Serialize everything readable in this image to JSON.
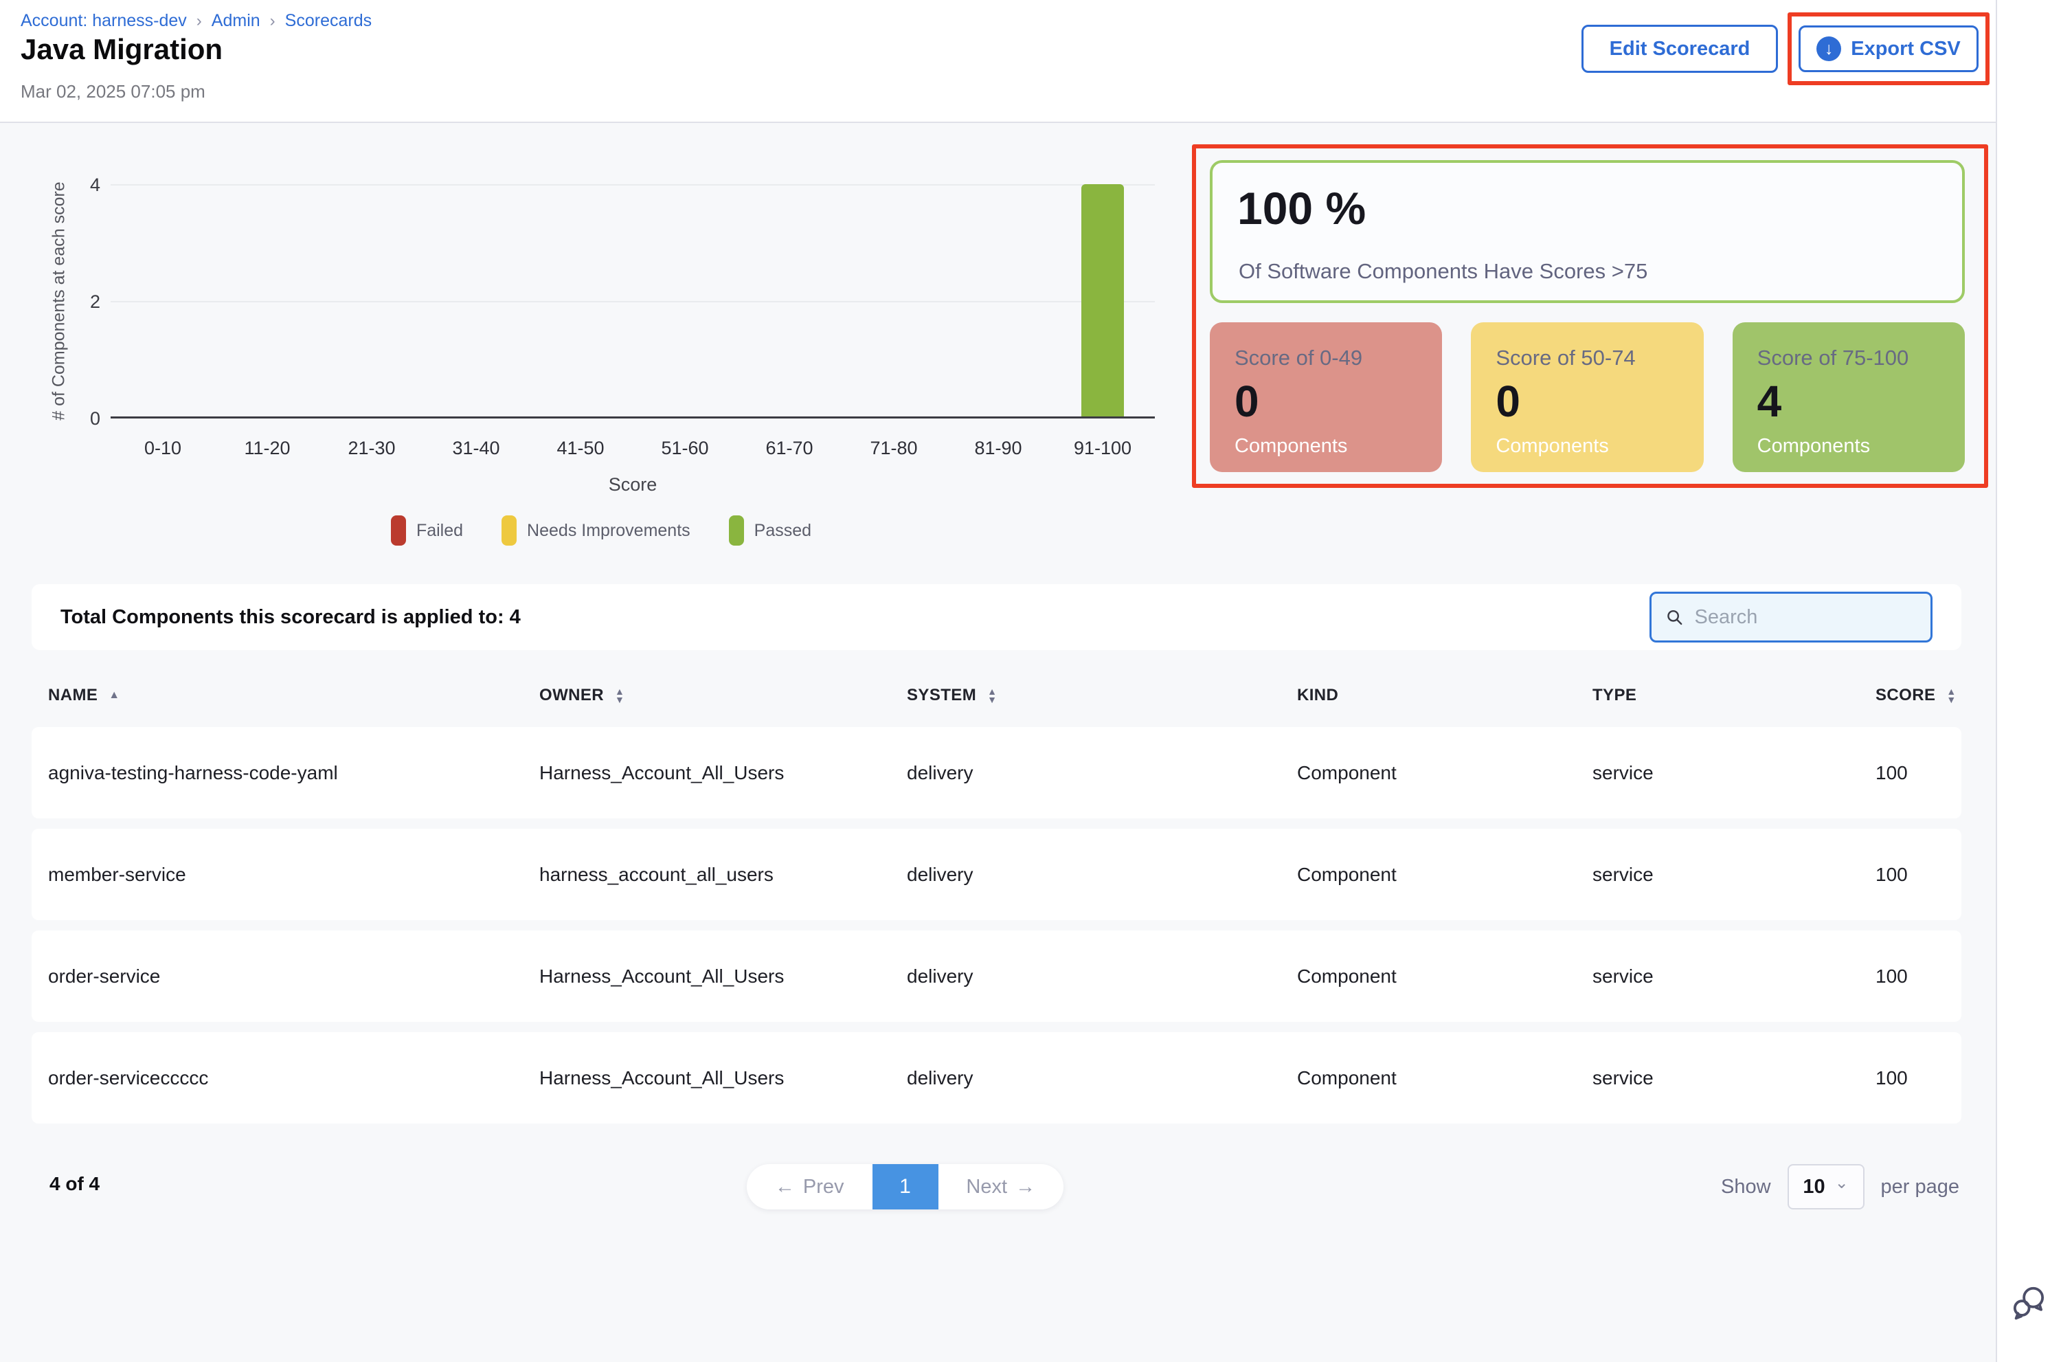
{
  "breadcrumb": {
    "items": [
      "Account: harness-dev",
      "Admin",
      "Scorecards"
    ],
    "separator": "›"
  },
  "header": {
    "title": "Java Migration",
    "timestamp": "Mar 02, 2025 07:05 pm",
    "edit_button": "Edit Scorecard",
    "export_button": "Export CSV"
  },
  "chart_data": {
    "type": "bar",
    "categories": [
      "0-10",
      "11-20",
      "21-30",
      "31-40",
      "41-50",
      "51-60",
      "61-70",
      "71-80",
      "81-90",
      "91-100"
    ],
    "values": [
      0,
      0,
      0,
      0,
      0,
      0,
      0,
      0,
      0,
      4
    ],
    "title": "",
    "xlabel": "Score",
    "ylabel": "# of Components at each score",
    "ylim": [
      0,
      4
    ],
    "yticks": [
      0,
      2,
      4
    ],
    "grid": true,
    "bar_color": "#8ab53f",
    "legend_position": "bottom",
    "legend": [
      {
        "label": "Failed",
        "color": "#bb3b2e"
      },
      {
        "label": "Needs Improvements",
        "color": "#eec93f"
      },
      {
        "label": "Passed",
        "color": "#8ab53f"
      }
    ]
  },
  "summary": {
    "headline_value": "100 %",
    "headline_caption": "Of Software Components Have Scores >75",
    "cards": [
      {
        "label": "Score of 0-49",
        "value": "0",
        "caption": "Components",
        "bg": "#dc938a"
      },
      {
        "label": "Score of 50-74",
        "value": "0",
        "caption": "Components",
        "bg": "#f5d97d"
      },
      {
        "label": "Score of 75-100",
        "value": "4",
        "caption": "Components",
        "bg": "#a0c46a"
      }
    ]
  },
  "table": {
    "total_label": "Total Components this scorecard is applied to: 4",
    "search_placeholder": "Search",
    "columns": [
      {
        "label": "NAME",
        "sort": "asc"
      },
      {
        "label": "OWNER",
        "sort": "both"
      },
      {
        "label": "SYSTEM",
        "sort": "both"
      },
      {
        "label": "KIND",
        "sort": "none"
      },
      {
        "label": "TYPE",
        "sort": "none"
      },
      {
        "label": "SCORE",
        "sort": "both"
      }
    ],
    "rows": [
      [
        "agniva-testing-harness-code-yaml",
        "Harness_Account_All_Users",
        "delivery",
        "Component",
        "service",
        "100"
      ],
      [
        "member-service",
        "harness_account_all_users",
        "delivery",
        "Component",
        "service",
        "100"
      ],
      [
        "order-service",
        "Harness_Account_All_Users",
        "delivery",
        "Component",
        "service",
        "100"
      ],
      [
        "order-serviceccccc",
        "Harness_Account_All_Users",
        "delivery",
        "Component",
        "service",
        "100"
      ]
    ]
  },
  "pagination": {
    "count_label": "4 of 4",
    "prev_label": "Prev",
    "page": "1",
    "next_label": "Next",
    "show_label": "Show",
    "page_size": "10",
    "per_page_label": "per page"
  },
  "icons": {
    "download": "↓",
    "prev_arrow": "←",
    "next_arrow": "→",
    "chevron_down": "⌄",
    "sort_asc": "▲",
    "sort_desc": "▼"
  },
  "colors": {
    "primary_blue": "#2e6cd5",
    "pagination_blue": "#4793e2",
    "annotation_red": "#ee3d23",
    "bar_green": "#8ab53f",
    "card_red_bg": "#dc938a",
    "card_yellow_bg": "#f5d97d",
    "card_green_bg": "#a0c46a",
    "headline_border_green": "#9ecb66",
    "page_bg": "#f7f8fa",
    "search_bg": "#edf6fc"
  }
}
